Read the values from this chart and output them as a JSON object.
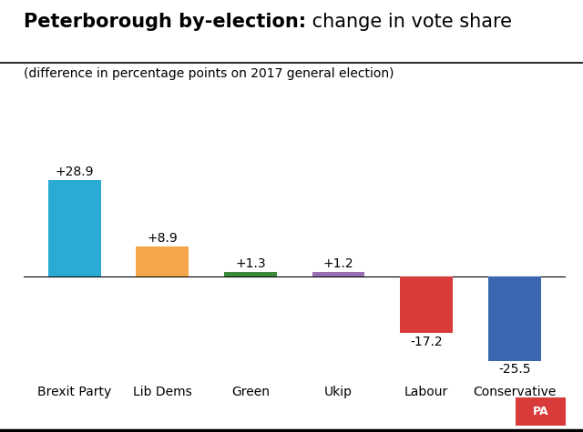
{
  "title_bold": "Peterborough by-election:",
  "title_regular": " change in vote share",
  "subtitle": "(difference in percentage points on 2017 general election)",
  "categories": [
    "Brexit Party",
    "Lib Dems",
    "Green",
    "Ukip",
    "Labour",
    "Conservative"
  ],
  "values": [
    28.9,
    8.9,
    1.3,
    1.2,
    -17.2,
    -25.5
  ],
  "colors": [
    "#29ABD4",
    "#F5A54A",
    "#3A8A3A",
    "#9B6DB5",
    "#D93A3A",
    "#3A67B0"
  ],
  "bg_color": "#FFFFFF",
  "value_labels": [
    "+28.9",
    "+8.9",
    "+1.3",
    "+1.2",
    "-17.2",
    "-25.5"
  ],
  "ylim": [
    -30,
    35
  ],
  "label_fontsize": 10,
  "value_fontsize": 10,
  "title_fontsize": 15,
  "subtitle_fontsize": 10,
  "pa_bg": "#D93A3A",
  "pa_text": "PA",
  "bar_width": 0.6
}
